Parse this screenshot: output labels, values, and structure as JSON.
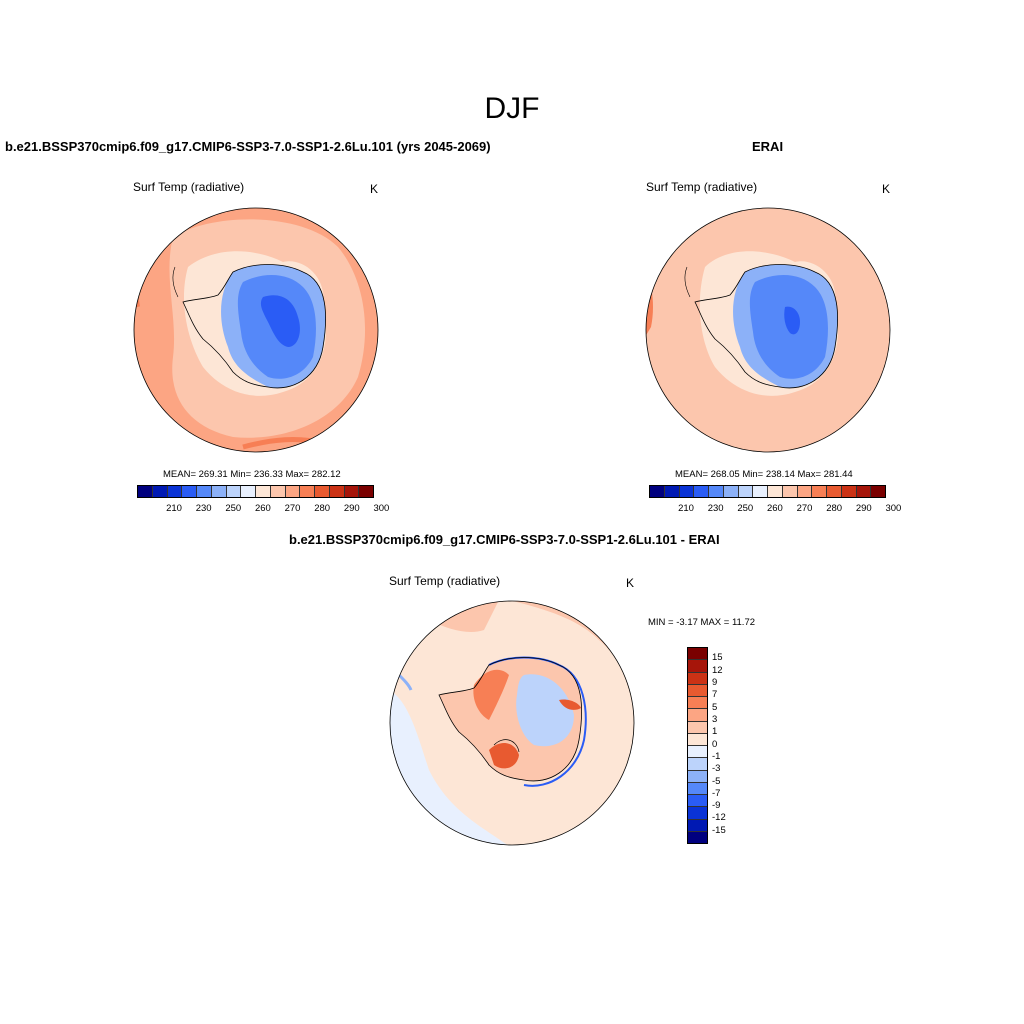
{
  "title": "DJF",
  "panels": [
    {
      "title": "b.e21.BSSP370cmip6.f09_g17.CMIP6-SSP3-7.0-SSP1-2.6Lu.101 (yrs 2045-2069)",
      "variable": "Surf Temp (radiative)",
      "units": "K",
      "stats": "MEAN= 269.31  Min= 236.33  Max= 282.12"
    },
    {
      "title": "ERAI",
      "variable": "Surf Temp (radiative)",
      "units": "K",
      "stats": "MEAN= 268.05  Min= 238.14  Max= 281.44"
    },
    {
      "title": "b.e21.BSSP370cmip6.f09_g17.CMIP6-SSP3-7.0-SSP1-2.6Lu.101 - ERAI",
      "variable": "Surf Temp (radiative)",
      "units": "K",
      "stats": "MIN =  -3.17 MAX =  11.72"
    }
  ],
  "abs_colorbar": {
    "colors": [
      "#00007f",
      "#0019b3",
      "#0a33d6",
      "#2a5cf5",
      "#5588f9",
      "#8cb1f8",
      "#bcd3fb",
      "#e8f0fe",
      "#fde6d6",
      "#fcc6ad",
      "#fca583",
      "#f77f55",
      "#e85a30",
      "#cb3215",
      "#a6150a",
      "#7a0000"
    ],
    "tick_labels": [
      "210",
      "230",
      "250",
      "260",
      "270",
      "280",
      "290",
      "300"
    ]
  },
  "diff_colorbar": {
    "colors": [
      "#7a0000",
      "#a6150a",
      "#cb3215",
      "#e85a30",
      "#f77f55",
      "#fca583",
      "#fcc6ad",
      "#fde6d6",
      "#e8f0fe",
      "#bcd3fb",
      "#8cb1f8",
      "#5588f9",
      "#2a5cf5",
      "#0a33d6",
      "#0019b3",
      "#00007f"
    ],
    "tick_labels": [
      "15",
      "12",
      "9",
      "7",
      "5",
      "3",
      "1",
      "0",
      "-1",
      "-3",
      "-5",
      "-7",
      "-9",
      "-12",
      "-15"
    ]
  }
}
